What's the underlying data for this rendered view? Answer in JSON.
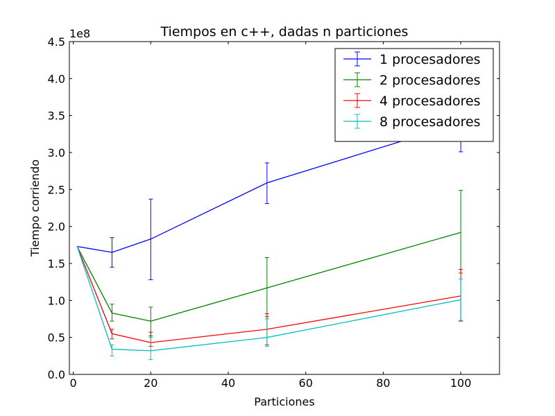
{
  "chart_data": {
    "type": "line",
    "title": "Tiempos en c++, dadas n particiones",
    "xlabel": "Particiones",
    "ylabel": "Tiempo corriendo",
    "y_offset_label": "1e8",
    "y_scale_factor": 100000000,
    "xlim": [
      -1,
      110
    ],
    "ylim": [
      0,
      450000000
    ],
    "x_ticks": [
      0,
      20,
      40,
      60,
      80,
      100
    ],
    "x_tick_labels": [
      "0",
      "20",
      "40",
      "60",
      "80",
      "100"
    ],
    "y_ticks": [
      0,
      50000000,
      100000000,
      150000000,
      200000000,
      250000000,
      300000000,
      350000000,
      400000000,
      450000000
    ],
    "y_tick_labels": [
      "0.0",
      "0.5",
      "1.0",
      "1.5",
      "2.0",
      "2.5",
      "3.0",
      "3.5",
      "4.0",
      "4.5"
    ],
    "grid": false,
    "legend_position": "top-right",
    "x": [
      1,
      10,
      20,
      50,
      100
    ],
    "series": [
      {
        "name": "1 procesadores",
        "color": "#0000ff",
        "values": [
          173000000,
          165000000,
          183000000,
          259000000,
          340000000
        ],
        "err_low": [
          173000000,
          145000000,
          128000000,
          231000000,
          301000000
        ],
        "err_high": [
          173000000,
          185000000,
          237000000,
          286000000,
          380000000
        ]
      },
      {
        "name": "2 procesadores",
        "color": "#008000",
        "values": [
          173000000,
          83000000,
          72000000,
          117000000,
          192000000
        ],
        "err_low": [
          173000000,
          72000000,
          52000000,
          78000000,
          137000000
        ],
        "err_high": [
          173000000,
          95000000,
          91000000,
          158000000,
          249000000
        ]
      },
      {
        "name": "4 procesadores",
        "color": "#ff0000",
        "values": [
          173000000,
          55000000,
          43000000,
          61000000,
          106000000
        ],
        "err_low": [
          173000000,
          48000000,
          38000000,
          40000000,
          72000000
        ],
        "err_high": [
          173000000,
          61000000,
          57000000,
          82000000,
          142000000
        ]
      },
      {
        "name": "8 procesadores",
        "color": "#00bfbf",
        "values": [
          173000000,
          34000000,
          32000000,
          50000000,
          101000000
        ],
        "err_low": [
          173000000,
          25000000,
          20000000,
          38000000,
          73000000
        ],
        "err_high": [
          173000000,
          40000000,
          50000000,
          75000000,
          129000000
        ]
      }
    ]
  }
}
